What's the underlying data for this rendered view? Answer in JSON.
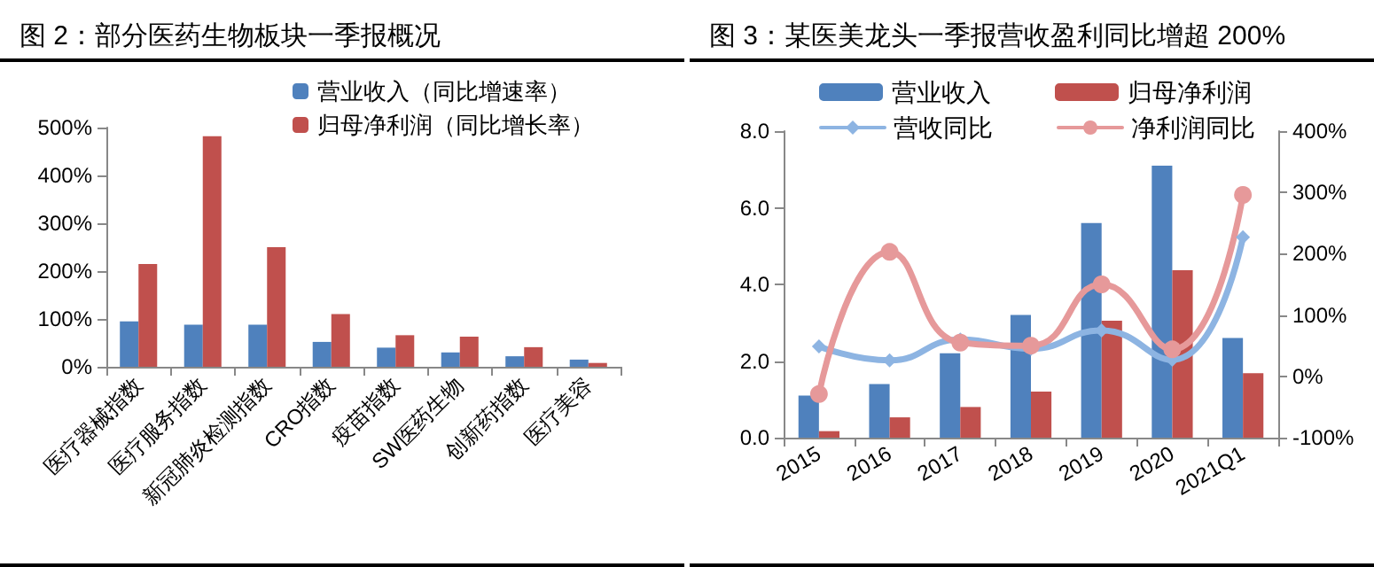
{
  "chart_data": [
    {
      "type": "bar",
      "title": "图 2：部分医药生物板块一季报概况",
      "categories": [
        "医疗器械指数",
        "医疗服务指数",
        "新冠肺炎检测指数",
        "CRO指数",
        "疫苗指数",
        "SW医药生物",
        "创新药指数",
        "医疗美容"
      ],
      "series": [
        {
          "name": "营业收入（同比增速率）",
          "color": "#4f81bd",
          "values": [
            95,
            88,
            88,
            52,
            40,
            30,
            22,
            15
          ]
        },
        {
          "name": "归母净利润（同比增长率）",
          "color": "#c0504d",
          "values": [
            215,
            482,
            250,
            110,
            66,
            63,
            41,
            8
          ]
        }
      ],
      "ylim": [
        0,
        500
      ],
      "yticks": [
        {
          "value": 0,
          "label": "0%"
        },
        {
          "value": 100,
          "label": "100%"
        },
        {
          "value": 200,
          "label": "200%"
        },
        {
          "value": 300,
          "label": "300%"
        },
        {
          "value": 400,
          "label": "400%"
        },
        {
          "value": 500,
          "label": "500%"
        }
      ],
      "legend": "top"
    },
    {
      "type": "bar",
      "title": "图 3：某医美龙头一季报营收盈利同比增超 200%",
      "categories": [
        "2015",
        "2016",
        "2017",
        "2018",
        "2019",
        "2020",
        "2021Q1"
      ],
      "series": [
        {
          "name": "营业收入",
          "color": "#4f81bd",
          "values": [
            1.1,
            1.4,
            2.2,
            3.2,
            5.6,
            7.1,
            2.6
          ]
        },
        {
          "name": "归母净利润",
          "color": "#c0504d",
          "values": [
            0.17,
            0.53,
            0.8,
            1.2,
            3.05,
            4.37,
            1.68
          ]
        },
        {
          "name": "营收同比",
          "type": "line",
          "axis": "y2",
          "marker": "diamond",
          "color": "#8db4e2",
          "values": [
            49,
            26,
            60,
            45,
            75,
            27,
            227
          ]
        },
        {
          "name": "净利润同比",
          "type": "line",
          "axis": "y2",
          "marker": "circle",
          "color": "#e6999a",
          "values": [
            -29,
            203,
            55,
            50,
            150,
            44,
            296
          ]
        }
      ],
      "ylim": [
        0,
        8
      ],
      "yticks": [
        {
          "value": 0,
          "label": "0.0"
        },
        {
          "value": 2,
          "label": "2.0"
        },
        {
          "value": 4,
          "label": "4.0"
        },
        {
          "value": 6,
          "label": "6.0"
        },
        {
          "value": 8,
          "label": "8.0"
        }
      ],
      "y2lim": [
        -100,
        400
      ],
      "y2ticks": [
        {
          "value": -100,
          "label": "-100%"
        },
        {
          "value": 0,
          "label": "0%"
        },
        {
          "value": 100,
          "label": "100%"
        },
        {
          "value": 200,
          "label": "200%"
        },
        {
          "value": 300,
          "label": "300%"
        },
        {
          "value": 400,
          "label": "400%"
        }
      ],
      "legend": "top"
    }
  ]
}
